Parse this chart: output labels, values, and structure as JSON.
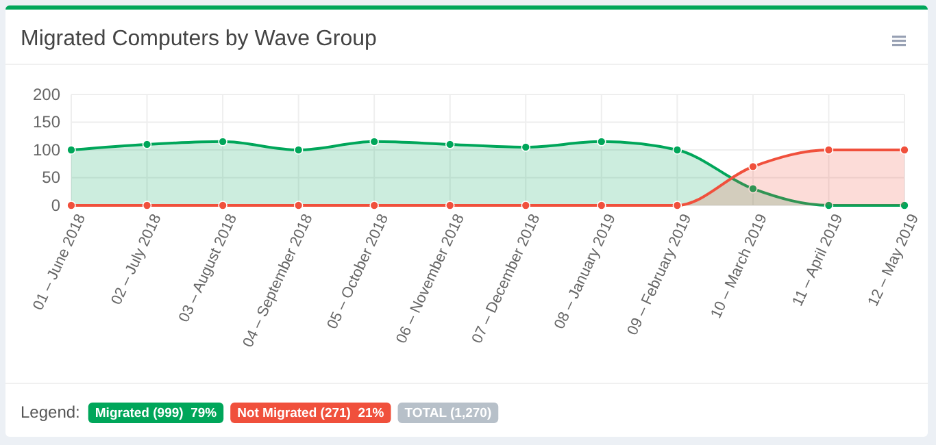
{
  "chart_data": {
    "type": "area",
    "title": "Migrated Computers by Wave Group",
    "legend_title": "Legend:",
    "legend": "bottom",
    "grid": true,
    "marker": "circle",
    "categories": [
      "01 – June 2018",
      "02 – July 2018",
      "03 – August 2018",
      "04 – September 2018",
      "05 – October 2018",
      "06 – November 2018",
      "07 – December 2018",
      "08 – January 2019",
      "09 – February 2019",
      "10 – March 2019",
      "11 – April 2019",
      "12 – May 2019"
    ],
    "ylim": [
      0,
      200
    ],
    "yticks": [
      0,
      50,
      100,
      150,
      200
    ],
    "series": [
      {
        "name": "Migrated (999)  79%",
        "color": "#00a65a",
        "values": [
          100,
          110,
          115,
          100,
          115,
          110,
          105,
          115,
          100,
          30,
          0,
          0
        ]
      },
      {
        "name": "Not Migrated (271)  21%",
        "color": "#f0503c",
        "values": [
          0,
          0,
          0,
          0,
          0,
          0,
          0,
          0,
          0,
          70,
          100,
          100
        ]
      }
    ],
    "annotations": [
      "TOTAL (1,270)"
    ]
  }
}
